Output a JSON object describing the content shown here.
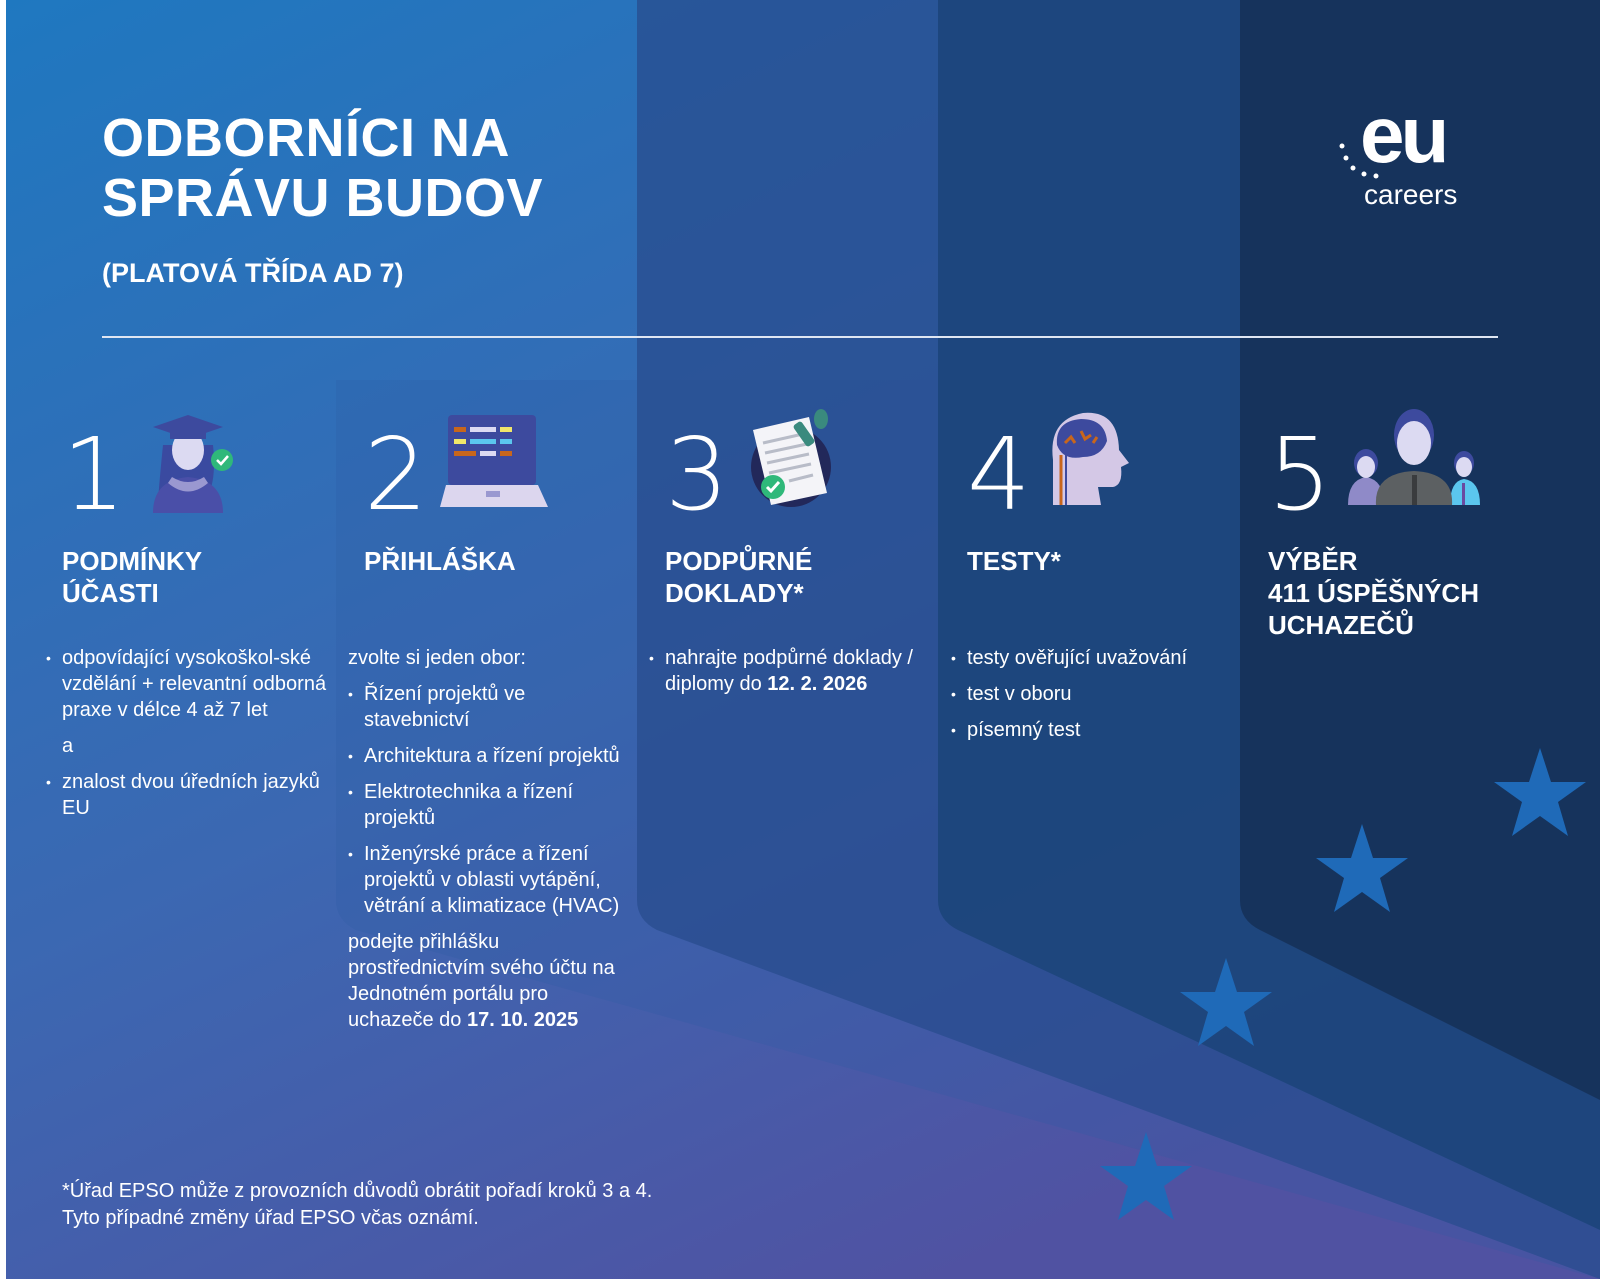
{
  "header": {
    "title_line1": "ODBORNÍCI NA",
    "title_line2": "SPRÁVU BUDOV",
    "subtitle": "(PLATOVÁ TŘÍDA AD 7)",
    "logo_text": "eu careers"
  },
  "colors": {
    "bg_top": "#1f77bf",
    "bg_bottom": "#4d54a3",
    "panel_dark": "#15325a",
    "star": "#1f6ab8",
    "check": "#2fb87a"
  },
  "steps": [
    {
      "number": "1",
      "icon": "graduate-icon",
      "title": [
        "PODMÍNKY",
        "ÚČASTI"
      ],
      "items": [
        "odpovídající vysokoškol-ské vzdělání + relevantní odborná praxe v délce 4 až 7 let"
      ],
      "connector": "a",
      "items2": [
        "znalost dvou úředních jazyků EU"
      ]
    },
    {
      "number": "2",
      "icon": "laptop-icon",
      "title": [
        "PŘIHLÁŠKA"
      ],
      "intro": "zvolte si jeden obor:",
      "items": [
        "Řízení projektů ve stavebnictví",
        "Architektura a řízení projektů",
        "Elektrotechnika a řízení projektů",
        "Inženýrské práce a řízení projektů v oblasti vytápění, větrání a klimatizace (HVAC)"
      ],
      "outro": "podejte přihlášku prostřednictvím svého účtu na Jednotném portálu pro uchazeče do ",
      "outro_date": "17. 10. 2025"
    },
    {
      "number": "3",
      "icon": "document-icon",
      "title": [
        "PODPŮRNÉ",
        "DOKLADY*"
      ],
      "item": "nahrajte podpůrné doklady / diplomy do ",
      "item_date": "12. 2. 2026"
    },
    {
      "number": "4",
      "icon": "brain-head-icon",
      "title": [
        "TESTY*"
      ],
      "items": [
        "testy ověřující uvažování",
        "test v oboru",
        "písemný test"
      ]
    },
    {
      "number": "5",
      "icon": "team-icon",
      "title": [
        "VÝBĚR",
        "411 ÚSPĚŠNÝCH",
        "UCHAZEČŮ"
      ]
    }
  ],
  "footnote": {
    "line1": "*Úřad EPSO může z provozních důvodů obrátit pořadí kroků 3 a 4.",
    "line2": "Tyto případné změny úřad EPSO včas oznámí."
  }
}
